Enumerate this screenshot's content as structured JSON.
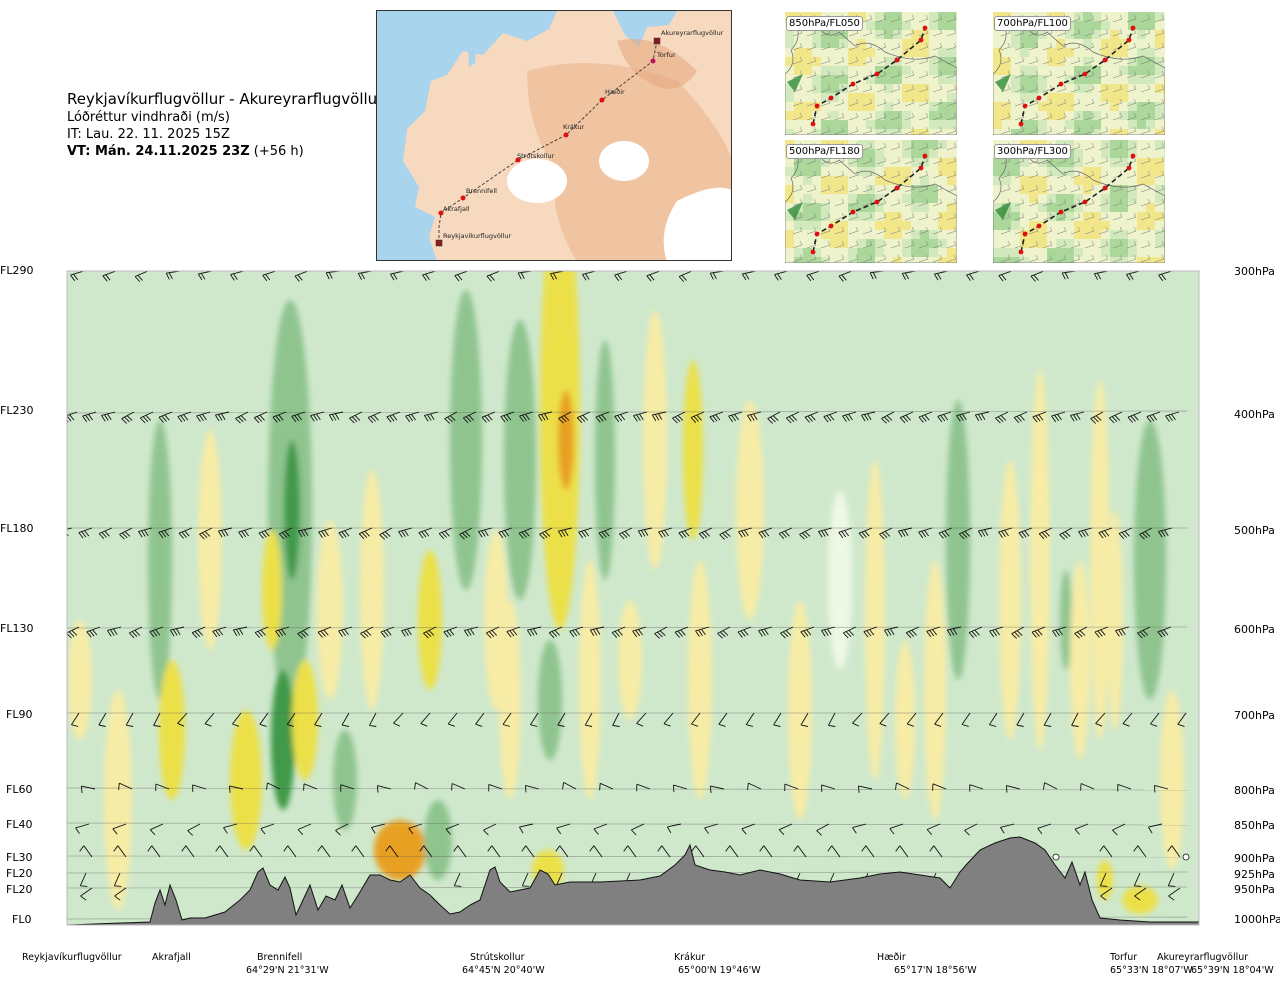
{
  "header": {
    "route_title": "Reykjavíkurflugvöllur - Akureyrarflugvöllur",
    "variable": "Lóðréttur vindhraði (m/s)",
    "issue_time": "IT: Lau. 22. 11. 2025 15Z",
    "valid_prefix": "VT: Mán. 24.11.2025 23Z",
    "valid_suffix": "(+56 h)"
  },
  "route_map": {
    "points": [
      "Akureyrarflugvöllur",
      "Torfur",
      "Hæðir",
      "Krákur",
      "Strútskollur",
      "Brennifell",
      "Akrafjall",
      "Reykjavíkurflugvöllur"
    ]
  },
  "level_panels": [
    {
      "label": "850hPa/FL050"
    },
    {
      "label": "700hPa/FL100"
    },
    {
      "label": "500hPa/FL180"
    },
    {
      "label": "300hPa/FL300"
    }
  ],
  "chart_data": {
    "type": "heatmap",
    "title": "Reykjavíkurflugvöllur - Akureyrarflugvöllur",
    "variable": "Lóðréttur vindhraði (m/s)",
    "left_axis_labels": [
      "FL290",
      "FL230",
      "FL180",
      "FL130",
      "FL90",
      "FL60",
      "FL40",
      "FL30",
      "FL20",
      "FL20",
      "FL0"
    ],
    "right_axis_labels": [
      "300hPa",
      "400hPa",
      "500hPa",
      "600hPa",
      "700hPa",
      "800hPa",
      "850hPa",
      "900hPa",
      "925hPa",
      "950hPa",
      "1000hPa"
    ],
    "pressure_levels": [
      300,
      400,
      500,
      600,
      700,
      800,
      850,
      900,
      925,
      950,
      1000
    ],
    "x_points": [
      {
        "name": "Reykjavíkurflugvöllur",
        "coord": ""
      },
      {
        "name": "Akrafjall",
        "coord": ""
      },
      {
        "name": "Brennifell",
        "coord": "64°29'N 21°31'W"
      },
      {
        "name": "Strútskollur",
        "coord": "64°45'N 20°40'W"
      },
      {
        "name": "Krákur",
        "coord": "65°00'N 19°46'W"
      },
      {
        "name": "Hæðir",
        "coord": "65°17'N 18°56'W"
      },
      {
        "name": "Torfur",
        "coord": "65°33'N 18°07'W"
      },
      {
        "name": "Akureyrarflugvöllur",
        "coord": "65°39'N 18°04'W"
      }
    ],
    "colors": {
      "strong_down": "#3f9a4a",
      "moderate_down": "#8fc48f",
      "weak_down": "#cfe8cc",
      "neutral": "#eef8e4",
      "weak_up": "#f6eca6",
      "moderate_up": "#ece04a",
      "strong_up": "#e8a020",
      "terrain": "#808080"
    }
  }
}
